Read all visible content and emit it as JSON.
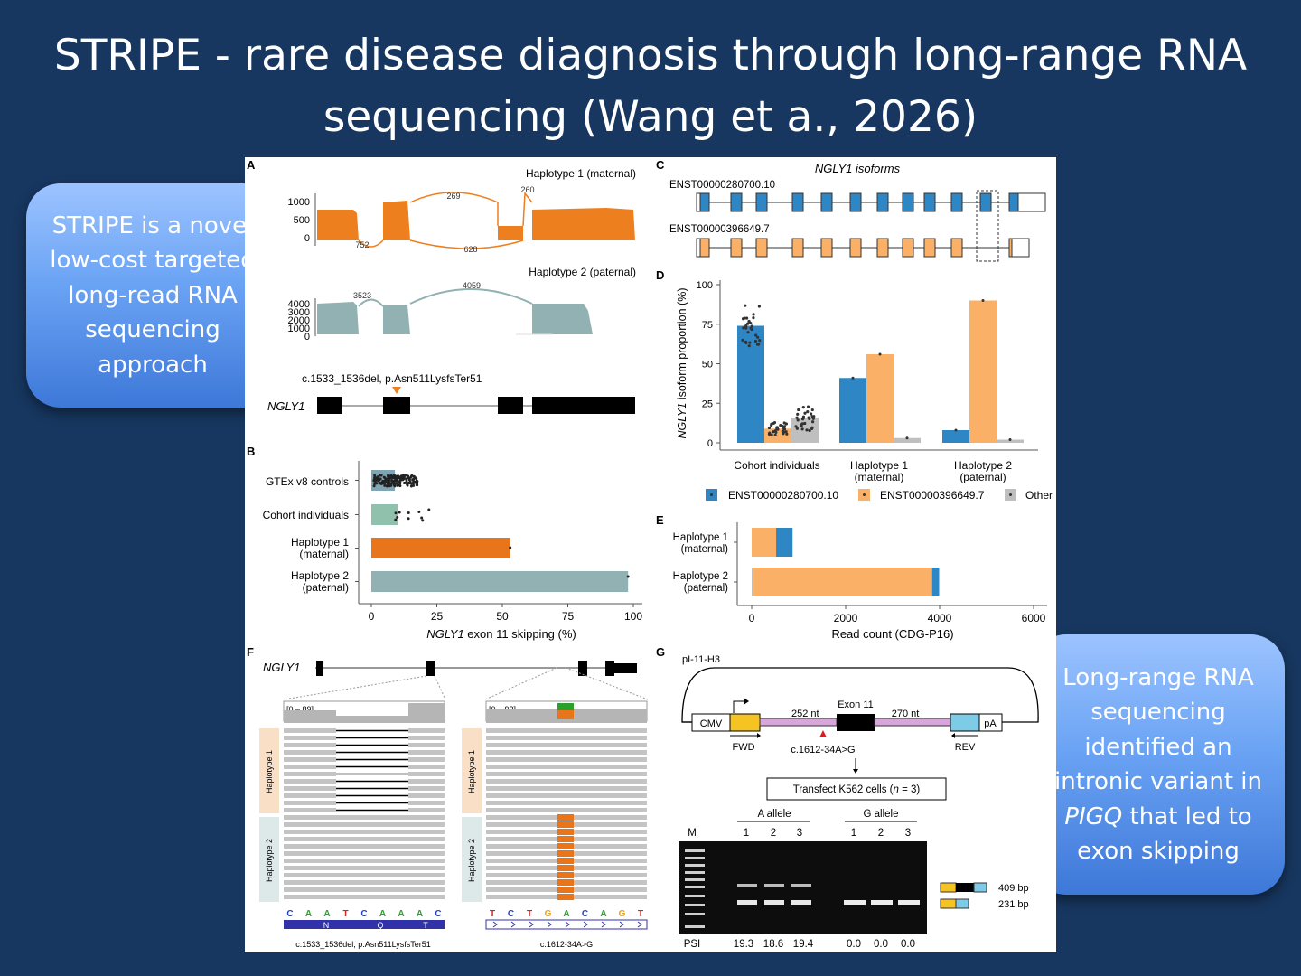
{
  "title": "STRIPE - rare disease diagnosis through long-range RNA sequencing (Wang et a., 2026)",
  "callouts": {
    "left": "STRIPE is a novel low-cost targeted long-read RNA sequencing approach",
    "right_pre": "Long-range RNA sequencing identified an intronic variant in ",
    "right_gene": "PIGQ",
    "right_post": " that led to exon skipping"
  },
  "panel_labels": {
    "a": "A",
    "b": "B",
    "c": "C",
    "d": "D",
    "e": "E",
    "f": "F",
    "g": "G"
  },
  "panel_a": {
    "hap1_label": "Haplotype 1 (maternal)",
    "hap2_label": "Haplotype 2 (paternal)",
    "hap1_ticks": [
      "1000",
      "500",
      "0"
    ],
    "hap2_ticks": [
      "4000",
      "3000",
      "2000",
      "1000",
      "0"
    ],
    "junctions_hap1": [
      "752",
      "269",
      "628",
      "260"
    ],
    "junctions_hap2": [
      "3523",
      "4059"
    ],
    "variant": "c.1533_1536del, p.Asn511LysfsTer51",
    "gene": "NGLY1",
    "colors": {
      "hap1": "#ee7f1e",
      "hap2": "#92b1b2"
    }
  },
  "panel_c": {
    "title": "NGLY1 isoforms",
    "isoform1": "ENST00000280700.10",
    "isoform2": "ENST00000396649.7"
  },
  "panel_b_chart": {
    "type": "bar",
    "categories": [
      "GTEx v8 controls",
      "Cohort individuals",
      "Haplotype 1 (maternal)",
      "Haplotype 2 (paternal)"
    ],
    "values": [
      9,
      10,
      53,
      98
    ],
    "xlabel_gene": "NGLY1",
    "xlabel_rest": " exon 11 skipping (%)",
    "ticks": [
      "0",
      "25",
      "50",
      "75",
      "100"
    ],
    "xlim": [
      0,
      100
    ],
    "colors": [
      "#7fa5b3",
      "#8fc1ad",
      "#e8751a",
      "#92b1b2"
    ]
  },
  "panel_d_chart": {
    "type": "bar",
    "categories": [
      "Cohort individuals",
      "Haplotype 1\n(maternal)",
      "Haplotype 2\n(paternal)"
    ],
    "series": [
      {
        "name": "ENST00000280700.10",
        "values": [
          74,
          41,
          8
        ],
        "color": "#2f86c4"
      },
      {
        "name": "ENST00000396649.7",
        "values": [
          9,
          56,
          90
        ],
        "color": "#fbb067"
      },
      {
        "name": "Other",
        "values": [
          16,
          3,
          2
        ],
        "color": "#bfbfbf"
      }
    ],
    "ylabel_gene": "NGLY1",
    "ylabel_rest": " isoform proportion (%)",
    "ticks": [
      "0",
      "25",
      "50",
      "75",
      "100"
    ],
    "ylim": [
      0,
      100
    ]
  },
  "panel_e_chart": {
    "type": "bar",
    "categories": [
      "Haplotype 1\n(maternal)",
      "Haplotype 2\n(paternal)"
    ],
    "series": [
      {
        "name": "Other",
        "values": [
          0,
          40
        ]
      },
      {
        "name": "ENST00000396649.7",
        "values": [
          520,
          3800
        ]
      },
      {
        "name": "ENST00000280700.10",
        "values": [
          350,
          150
        ]
      }
    ],
    "xlabel": "Read count (CDG-P16)",
    "ticks": [
      "0",
      "2000",
      "4000",
      "6000"
    ],
    "xlim": [
      0,
      6000
    ]
  },
  "panel_f": {
    "gene": "NGLY1",
    "range1": "[0 – 89]",
    "range2": "[0 – 92]",
    "track1": "Haplotype 1",
    "track2": "Haplotype 2",
    "seq1": [
      "C",
      "A",
      "A",
      "T",
      "C",
      "A",
      "A",
      "A",
      "C"
    ],
    "aa1": [
      "N",
      "Q",
      "T"
    ],
    "seq2": [
      "T",
      "C",
      "T",
      "G",
      "A",
      "C",
      "A",
      "G",
      "T"
    ],
    "caption1": "c.1533_1536del, p.Asn511LysfsTer51",
    "caption2": "c.1612-34A>G"
  },
  "panel_g": {
    "construct": "pI-11-H3",
    "cmv": "CMV",
    "exon": "Exon 11",
    "left_intron": "252 nt",
    "right_intron": "270 nt",
    "pa": "pA",
    "fwd": "FWD",
    "rev": "REV",
    "variant": "c.1612-34A>G",
    "transfect_pre": "Transfect K562 cells (",
    "transfect_n": "n",
    "transfect_post": " = 3)",
    "a_allele": "A allele",
    "g_allele": "G allele",
    "lane_nums": [
      "1",
      "2",
      "3",
      "1",
      "2",
      "3"
    ],
    "marker": "M",
    "bp_long": "409 bp",
    "bp_short": "231 bp",
    "psi_label": "PSI",
    "psi_values": [
      "19.3",
      "18.6",
      "19.4",
      "0.0",
      "0.0",
      "0.0"
    ]
  }
}
